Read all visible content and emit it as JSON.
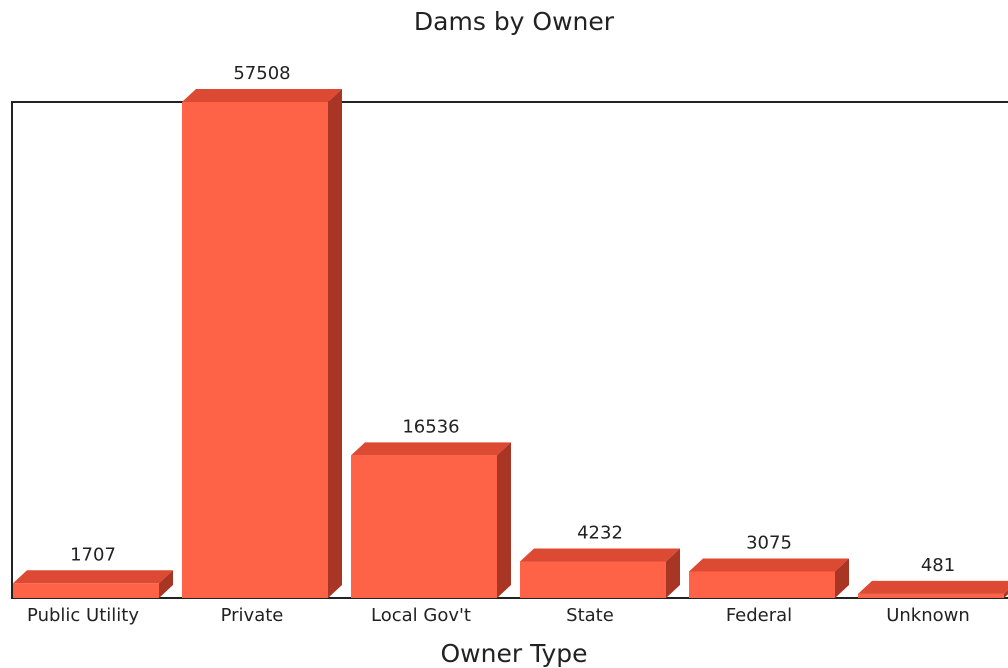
{
  "chart_data": {
    "type": "bar",
    "title": "Dams by Owner",
    "xlabel": "Owner Type",
    "ylabel": "",
    "categories": [
      "Public Utility",
      "Private",
      "Local Gov't",
      "State",
      "Federal",
      "Unknown"
    ],
    "values": [
      1707,
      57508,
      16536,
      4232,
      3075,
      481
    ],
    "ylim": [
      0,
      57508
    ],
    "grid": false,
    "legend": "none",
    "bar_style": "3d",
    "colors": {
      "front": "#ff6347",
      "top": "#dd4a33",
      "side": "#a93525",
      "frame": "#222222"
    }
  }
}
